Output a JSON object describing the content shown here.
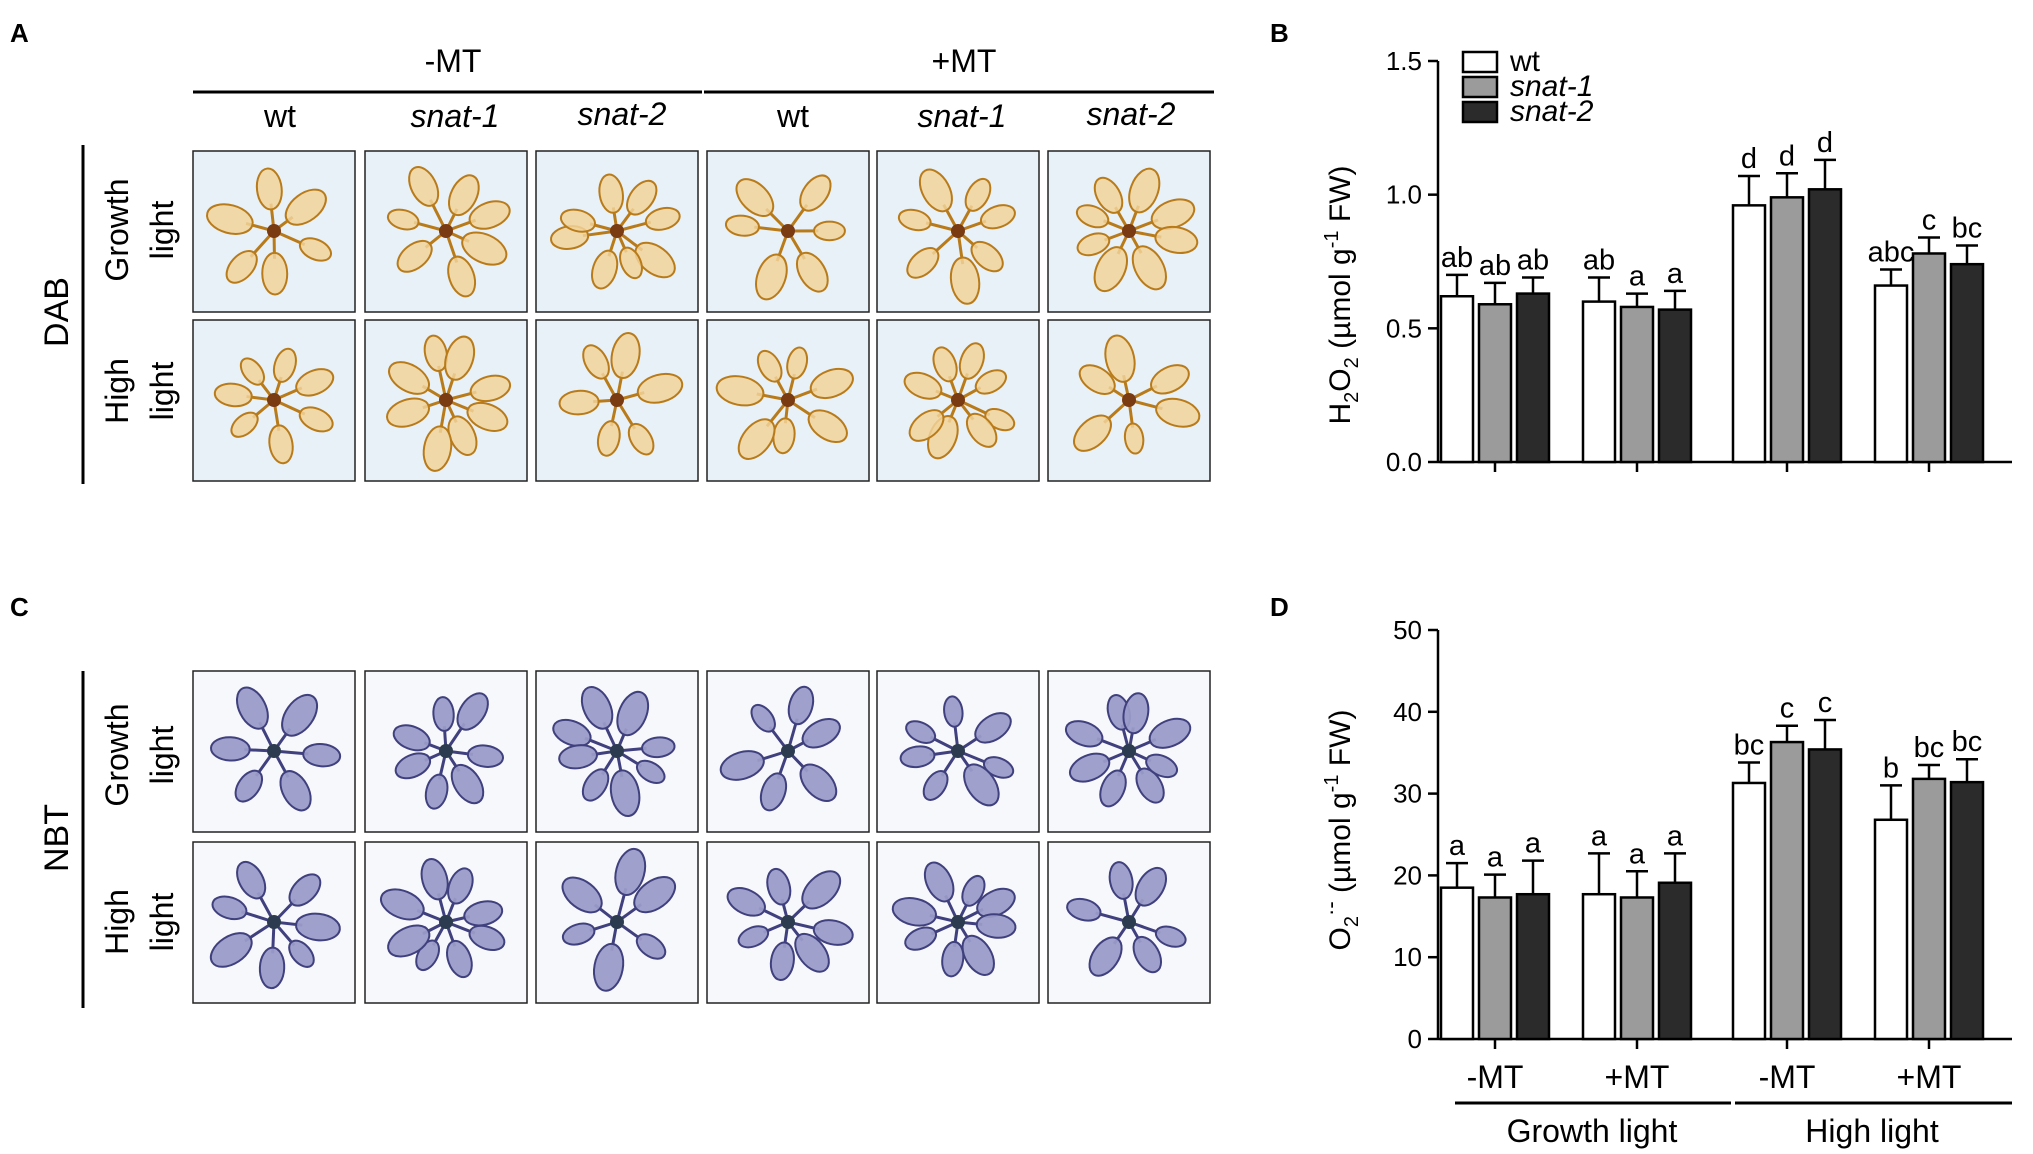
{
  "panels": {
    "a": "A",
    "b": "B",
    "c": "C",
    "d": "D"
  },
  "treatments": [
    "-MT",
    "+MT"
  ],
  "genotypes": [
    {
      "label": "wt",
      "italic": false
    },
    {
      "label": "snat-1",
      "italic": true
    },
    {
      "label": "snat-2",
      "italic": true
    }
  ],
  "stain_dab": "DAB",
  "stain_nbt": "NBT",
  "light_rows": [
    [
      "Growth",
      "light"
    ],
    [
      "High",
      "light"
    ]
  ],
  "photo_colors": {
    "dab_bg": "#e7f1f7",
    "dab_leaf": "#f1d49a",
    "dab_edge": "#b97b1a",
    "dab_center": "#7a3a12",
    "nbt_bg": "#f7f8fb",
    "nbt_leaf": "#9a9bc8",
    "nbt_edge": "#40407e",
    "nbt_center": "#2c3b4f"
  },
  "bar_colors": {
    "wt": "#ffffff",
    "snat-1": "#9b9b9b",
    "snat-2": "#2b2b2b"
  },
  "legend": [
    {
      "label": "wt",
      "italic": false
    },
    {
      "label": "snat-1",
      "italic": true
    },
    {
      "label": "snat-2",
      "italic": true
    }
  ],
  "chart_data": [
    {
      "id": "B",
      "type": "bar",
      "ylabel": "H2O2 (µmol g-1 FW)",
      "ylim": [
        0,
        1.5
      ],
      "yticks": [
        "0.0",
        "0.5",
        "1.0",
        "1.5"
      ],
      "categories": [
        "Growth light -MT",
        "Growth light +MT",
        "High light -MT",
        "High light +MT"
      ],
      "series": [
        {
          "name": "wt",
          "values": [
            0.62,
            0.6,
            0.96,
            0.66
          ],
          "errors": [
            0.08,
            0.09,
            0.11,
            0.06
          ],
          "letters": [
            "ab",
            "ab",
            "d",
            "abc"
          ]
        },
        {
          "name": "snat-1",
          "values": [
            0.59,
            0.58,
            0.99,
            0.78
          ],
          "errors": [
            0.08,
            0.05,
            0.09,
            0.06
          ],
          "letters": [
            "ab",
            "a",
            "d",
            "c"
          ]
        },
        {
          "name": "snat-2",
          "values": [
            0.63,
            0.57,
            1.02,
            0.74
          ],
          "errors": [
            0.06,
            0.07,
            0.11,
            0.07
          ],
          "letters": [
            "ab",
            "a",
            "d",
            "bc"
          ]
        }
      ]
    },
    {
      "id": "D",
      "type": "bar",
      "ylabel": "O2·- (µmol g-1 FW)",
      "ylim": [
        0,
        50
      ],
      "yticks": [
        "0",
        "10",
        "20",
        "30",
        "40",
        "50"
      ],
      "xtick_labels": [
        "-MT",
        "+MT",
        "-MT",
        "+MT"
      ],
      "groups": [
        "Growth light",
        "High light"
      ],
      "categories": [
        "Growth light -MT",
        "Growth light +MT",
        "High light -MT",
        "High light +MT"
      ],
      "series": [
        {
          "name": "wt",
          "values": [
            18.5,
            17.7,
            31.3,
            26.8
          ],
          "errors": [
            3.0,
            5.0,
            2.5,
            4.2
          ],
          "letters": [
            "a",
            "a",
            "bc",
            "b"
          ]
        },
        {
          "name": "snat-1",
          "values": [
            17.3,
            17.3,
            36.3,
            31.8
          ],
          "errors": [
            2.8,
            3.2,
            2.0,
            1.7
          ],
          "letters": [
            "a",
            "a",
            "c",
            "bc"
          ]
        },
        {
          "name": "snat-2",
          "values": [
            17.7,
            19.1,
            35.4,
            31.4
          ],
          "errors": [
            4.1,
            3.6,
            3.6,
            2.8
          ],
          "letters": [
            "a",
            "a",
            "c",
            "bc"
          ]
        }
      ]
    }
  ]
}
